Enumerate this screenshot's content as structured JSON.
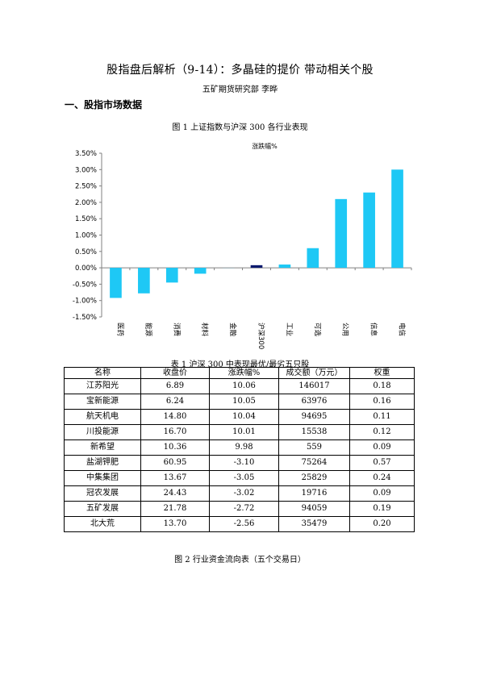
{
  "document": {
    "title": "股指盘后解析（9-14）：多晶硅的提价  带动相关个股",
    "author": "五矿期货研究部    李晔",
    "section_heading": "一、股指市场数据",
    "figure1_caption": "图 1    上证指数与沪深 300 各行业表现",
    "table1_caption": "表 1    沪深 300 中表现最优/最劣五只股",
    "figure2_caption": "图 2    行业资金流向表（五个交易日）"
  },
  "chart_data": {
    "type": "bar",
    "title": "涨跌幅%",
    "categories": [
      "医药",
      "能源",
      "消费",
      "材料",
      "金融",
      "沪深300",
      "工业",
      "可选",
      "公用",
      "信息",
      "电信"
    ],
    "values": [
      -0.92,
      -0.78,
      -0.45,
      -0.18,
      0.0,
      0.08,
      0.1,
      0.6,
      2.1,
      2.3,
      3.0
    ],
    "highlight_category": "沪深300",
    "ylim": [
      -1.5,
      3.5
    ],
    "yticks": [
      -1.5,
      -1.0,
      -0.5,
      0.0,
      0.5,
      1.0,
      1.5,
      2.0,
      2.5,
      3.0,
      3.5
    ],
    "ytick_labels": [
      "-1.50%",
      "-1.00%",
      "-0.50%",
      "0.00%",
      "0.50%",
      "1.00%",
      "1.50%",
      "2.00%",
      "2.50%",
      "3.00%",
      "3.50%"
    ],
    "xlabel": "",
    "ylabel": "",
    "grid": false,
    "colors": {
      "bar": "#1ec8f5",
      "highlight": "#0a1a6e",
      "axis": "#808080"
    }
  },
  "table": {
    "headers": [
      "名称",
      "收盘价",
      "涨跌幅%",
      "成交额（万元）",
      "权重"
    ],
    "rows": [
      [
        "江苏阳光",
        "6.89",
        "10.06",
        "146017",
        "0.18"
      ],
      [
        "宝新能源",
        "6.24",
        "10.05",
        "63976",
        "0.16"
      ],
      [
        "航天机电",
        "14.80",
        "10.04",
        "94695",
        "0.11"
      ],
      [
        "川投能源",
        "16.70",
        "10.01",
        "15538",
        "0.12"
      ],
      [
        "新希望",
        "10.36",
        "9.98",
        "559",
        "0.09"
      ],
      [
        "盐湖钾肥",
        "60.95",
        "-3.10",
        "75264",
        "0.57"
      ],
      [
        "中集集团",
        "13.67",
        "-3.05",
        "25829",
        "0.24"
      ],
      [
        "冠农发展",
        "24.43",
        "-3.02",
        "19716",
        "0.09"
      ],
      [
        "五矿发展",
        "21.78",
        "-2.72",
        "94059",
        "0.19"
      ],
      [
        "北大荒",
        "13.70",
        "-2.56",
        "35479",
        "0.20"
      ]
    ]
  }
}
